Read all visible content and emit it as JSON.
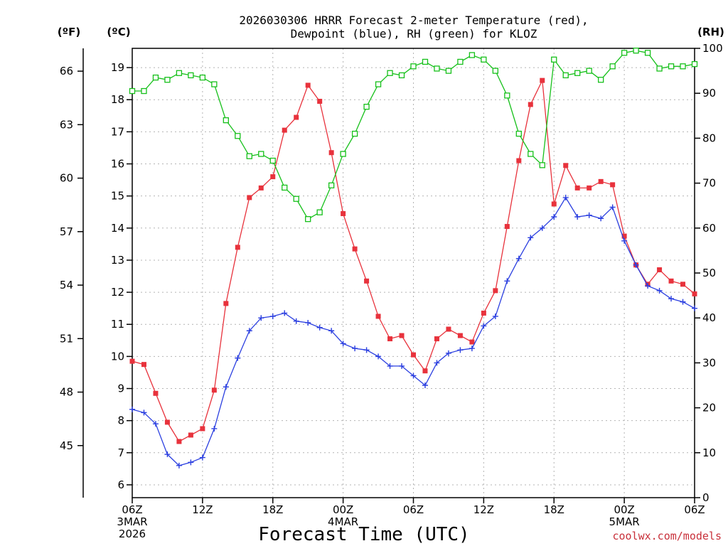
{
  "title_line1": "2026030306 HRRR Forecast 2-meter Temperature (red),",
  "title_line2": "Dewpoint (blue), RH (green) for KLOZ",
  "unit_left_f": "(ºF)",
  "unit_left_c": "(ºC)",
  "unit_right_rh": "(RH)",
  "xlabel": "Forecast Time (UTC)",
  "credit": "coolwx.com/models",
  "colors": {
    "temperature": "#e8323c",
    "dewpoint": "#2b3fe0",
    "rh": "#16c01a",
    "grid": "#b4b4b4"
  },
  "chart_data": {
    "type": "line",
    "title": "2026030306 HRRR Forecast 2-meter Temperature (red), Dewpoint (blue), RH (green) for KLOZ",
    "xlabel": "Forecast Time (UTC)",
    "x": [
      0,
      1,
      2,
      3,
      4,
      5,
      6,
      7,
      8,
      9,
      10,
      11,
      12,
      13,
      14,
      15,
      16,
      17,
      18,
      19,
      20,
      21,
      22,
      23,
      24,
      25,
      26,
      27,
      28,
      29,
      30,
      31,
      32,
      33,
      34,
      35,
      36,
      37,
      38,
      39,
      40,
      41,
      42,
      43,
      44,
      45,
      46,
      47,
      48
    ],
    "x_unit": "hours from 2026-03-03 06Z",
    "xlim": [
      0,
      48
    ],
    "x_ticks": [
      {
        "x": 0,
        "label": "06Z",
        "date": "3MAR",
        "year": "2026"
      },
      {
        "x": 6,
        "label": "12Z"
      },
      {
        "x": 12,
        "label": "18Z"
      },
      {
        "x": 18,
        "label": "00Z",
        "date": "4MAR"
      },
      {
        "x": 24,
        "label": "06Z"
      },
      {
        "x": 30,
        "label": "12Z"
      },
      {
        "x": 36,
        "label": "18Z"
      },
      {
        "x": 42,
        "label": "00Z",
        "date": "5MAR"
      },
      {
        "x": 48,
        "label": "06Z"
      }
    ],
    "ylim_c": [
      5.6,
      19.6
    ],
    "y_ticks_c": [
      6,
      7,
      8,
      9,
      10,
      11,
      12,
      13,
      14,
      15,
      16,
      17,
      18,
      19
    ],
    "y_ticks_f": [
      45,
      48,
      51,
      54,
      57,
      60,
      63,
      66
    ],
    "ylim_rh": [
      0,
      100
    ],
    "y_ticks_rh": [
      0,
      10,
      20,
      30,
      40,
      50,
      60,
      70,
      80,
      90,
      100
    ],
    "grid": true,
    "series": [
      {
        "name": "Temperature",
        "axis": "c",
        "marker": "filled-square",
        "values": [
          9.85,
          9.75,
          8.85,
          7.95,
          7.35,
          7.55,
          7.75,
          8.95,
          11.65,
          13.4,
          14.95,
          15.25,
          15.6,
          17.05,
          17.45,
          18.45,
          17.95,
          16.35,
          14.45,
          13.35,
          12.35,
          11.25,
          10.55,
          10.65,
          10.05,
          9.55,
          10.55,
          10.85,
          10.65,
          10.45,
          11.35,
          12.05,
          14.05,
          16.1,
          17.85,
          18.6,
          14.75,
          15.95,
          15.25,
          15.25,
          15.45,
          15.35,
          13.75,
          12.85,
          12.25,
          12.7,
          12.35,
          12.25,
          11.95
        ]
      },
      {
        "name": "Dewpoint",
        "axis": "c",
        "marker": "plus",
        "values": [
          8.35,
          8.25,
          7.9,
          6.95,
          6.6,
          6.7,
          6.85,
          7.75,
          9.05,
          9.95,
          10.8,
          11.2,
          11.25,
          11.35,
          11.1,
          11.05,
          10.9,
          10.8,
          10.4,
          10.25,
          10.2,
          10.0,
          9.7,
          9.7,
          9.4,
          9.1,
          9.8,
          10.1,
          10.2,
          10.25,
          10.95,
          11.25,
          12.35,
          13.05,
          13.7,
          14.0,
          14.35,
          14.95,
          14.35,
          14.4,
          14.3,
          14.65,
          13.6,
          12.85,
          12.2,
          12.05,
          11.8,
          11.7,
          11.5
        ]
      },
      {
        "name": "RH",
        "axis": "rh",
        "marker": "open-square",
        "values": [
          90.5,
          90.5,
          93.5,
          93.0,
          94.5,
          94.0,
          93.5,
          92.0,
          84.0,
          80.5,
          76.0,
          76.5,
          75.0,
          69.0,
          66.5,
          62.0,
          63.5,
          69.5,
          76.5,
          81.0,
          87.0,
          92.0,
          94.5,
          94.0,
          96.0,
          97.0,
          95.5,
          95.0,
          97.0,
          98.5,
          97.5,
          95.0,
          89.5,
          81.0,
          76.5,
          74.0,
          97.5,
          94.0,
          94.5,
          95.0,
          93.0,
          96.0,
          99.0,
          99.5,
          99.0,
          95.5,
          96.0,
          96.0,
          96.5
        ]
      }
    ]
  }
}
